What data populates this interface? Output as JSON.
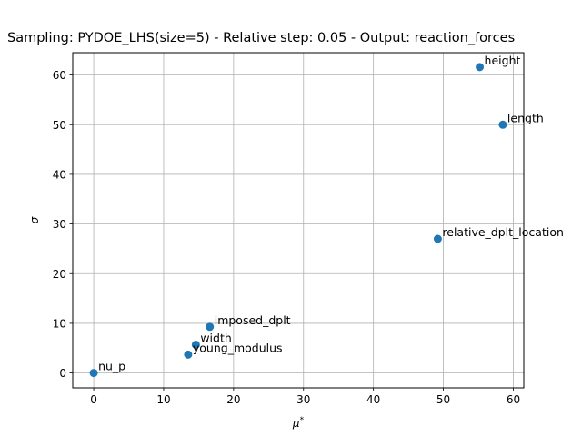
{
  "chart_data": {
    "type": "scatter",
    "title": "Sampling: PYDOE_LHS(size=5) - Relative step: 0.05 - Output: reaction_forces",
    "xlabel": "μ*",
    "ylabel": "σ",
    "xlim": [
      -3,
      61.5
    ],
    "ylim": [
      -3,
      64.5
    ],
    "xticks": [
      0,
      10,
      20,
      30,
      40,
      50,
      60
    ],
    "yticks": [
      0,
      10,
      20,
      30,
      40,
      50,
      60
    ],
    "grid": true,
    "marker_color": "#1f77b4",
    "points": [
      {
        "label": "height",
        "x": 55.2,
        "y": 61.6
      },
      {
        "label": "length",
        "x": 58.5,
        "y": 50.0
      },
      {
        "label": "relative_dplt_location",
        "x": 49.2,
        "y": 27.0
      },
      {
        "label": "imposed_dplt",
        "x": 16.6,
        "y": 9.3
      },
      {
        "label": "width",
        "x": 14.6,
        "y": 5.7
      },
      {
        "label": "young_modulus",
        "x": 13.5,
        "y": 3.7
      },
      {
        "label": "nu_p",
        "x": 0.0,
        "y": 0.0
      }
    ]
  }
}
